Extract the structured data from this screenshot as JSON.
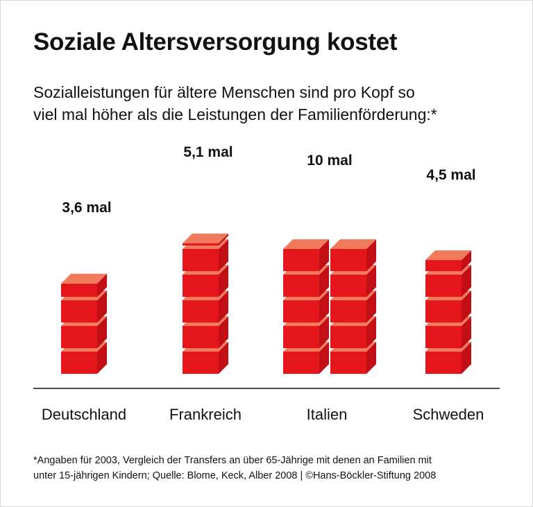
{
  "chart_data": {
    "type": "bar",
    "title": "Soziale Altersversorgung kostet",
    "subtitle_lines": [
      "Sozialleistungen für ältere Menschen sind pro Kopf so",
      "viel mal höher als die Leistungen der Familienförderung:*"
    ],
    "categories": [
      "Deutschland",
      "Frankreich",
      "Italien",
      "Schweden"
    ],
    "values": [
      3.6,
      5.1,
      10,
      4.5
    ],
    "data_labels": [
      "3,6 mal",
      "5,1 mal",
      "10 mal",
      "4,5 mal"
    ],
    "unit_mark": "stacked cubes, one cube = 1",
    "colors": {
      "front": "#e5151c",
      "side": "#c10f15",
      "top": "#f27a5c",
      "axis": "#111111"
    },
    "footnote_lines": [
      "*Angaben für 2003, Vergleich der Transfers an über 65-Jährige mit denen an Familien mit",
      "unter 15-jährigen Kindern; Quelle: Blome, Keck, Alber 2008 | ©Hans-Böckler-Stiftung 2008"
    ]
  }
}
